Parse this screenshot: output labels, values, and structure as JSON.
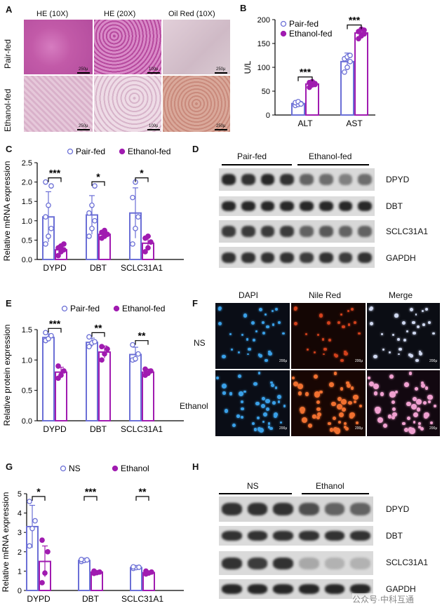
{
  "panels": {
    "A": {
      "letter": "A",
      "col_labels": [
        "HE (10X)",
        "HE (20X)",
        "Oil Red (10X)"
      ],
      "row_labels": [
        "Pair-fed",
        "Ethanol-fed"
      ],
      "scale_labels": [
        "250μ",
        "100μ",
        "250μ",
        "250μ",
        "100μ",
        "250μ"
      ]
    },
    "B": {
      "letter": "B"
    },
    "C": {
      "letter": "C"
    },
    "D": {
      "letter": "D",
      "groups": [
        "Pair-fed",
        "Ethanol-fed"
      ],
      "bands": [
        "DPYD",
        "DBT",
        "SCLC31A1",
        "GAPDH"
      ]
    },
    "E": {
      "letter": "E"
    },
    "F": {
      "letter": "F",
      "col_labels": [
        "DAPI",
        "Nile Red",
        "Merge"
      ],
      "row_labels": [
        "NS",
        "Ethanol"
      ],
      "scale_labels": [
        "200μ",
        "200μ",
        "200μ",
        "200μ",
        "200μ",
        "200μ"
      ]
    },
    "G": {
      "letter": "G"
    },
    "H": {
      "letter": "H",
      "groups": [
        "NS",
        "Ethanol"
      ],
      "bands": [
        "DPYD",
        "DBT",
        "SCLC31A1",
        "GAPDH"
      ]
    }
  },
  "watermark": "公众号·中科互通",
  "colors": {
    "control": "#6b6fd6",
    "treated": "#a01bb0"
  },
  "chart_data": [
    {
      "panel": "B",
      "type": "bar",
      "categories": [
        "ALT",
        "AST"
      ],
      "series": [
        {
          "name": "Pair-fed",
          "values": [
            24,
            112
          ],
          "sd": [
            5,
            18
          ],
          "points": [
            [
              20,
              22,
              24,
              26,
              28,
              23
            ],
            [
              90,
              100,
              112,
              118,
              122,
              125
            ]
          ]
        },
        {
          "name": "Ethanol-fed",
          "values": [
            65,
            172
          ],
          "sd": [
            6,
            8
          ],
          "points": [
            [
              58,
              63,
              66,
              68,
              70,
              64
            ],
            [
              160,
              166,
              170,
              175,
              180,
              178
            ]
          ]
        }
      ],
      "ylabel": "U/L",
      "ylim": [
        0,
        200
      ],
      "yticks": [
        0,
        50,
        100,
        150,
        200
      ],
      "significance": [
        "***",
        "***"
      ]
    },
    {
      "panel": "C",
      "type": "bar",
      "categories": [
        "DYPD",
        "DBT",
        "SCLC31A1"
      ],
      "series": [
        {
          "name": "Pair-fed",
          "values": [
            1.1,
            1.15,
            1.2
          ],
          "sd": [
            0.65,
            0.5,
            0.65
          ],
          "points": [
            [
              0.4,
              0.6,
              0.8,
              1.1,
              1.4,
              1.9,
              2.0
            ],
            [
              0.6,
              0.8,
              1.0,
              1.2,
              1.4,
              1.9
            ],
            [
              0.4,
              0.8,
              1.1,
              1.6,
              2.0
            ]
          ]
        },
        {
          "name": "Ethanol-fed",
          "values": [
            0.25,
            0.65,
            0.42
          ],
          "sd": [
            0.12,
            0.08,
            0.18
          ],
          "points": [
            [
              0.1,
              0.2,
              0.25,
              0.3,
              0.35,
              0.4
            ],
            [
              0.55,
              0.6,
              0.65,
              0.7,
              0.75
            ],
            [
              0.2,
              0.3,
              0.45,
              0.55,
              0.6
            ]
          ]
        }
      ],
      "ylabel": "Relative mRNA expression",
      "ylim": [
        0,
        2.5
      ],
      "yticks": [
        0.0,
        0.5,
        1.0,
        1.5,
        2.0,
        2.5
      ],
      "significance": [
        "***",
        "*",
        "*"
      ]
    },
    {
      "panel": "E",
      "type": "bar",
      "categories": [
        "DYPD",
        "DBT",
        "SCLC31A1"
      ],
      "series": [
        {
          "name": "Pair-fed",
          "values": [
            1.37,
            1.29,
            1.09
          ],
          "sd": [
            0.06,
            0.07,
            0.12
          ],
          "points": [
            [
              1.32,
              1.35,
              1.4,
              1.45
            ],
            [
              1.22,
              1.28,
              1.3,
              1.38
            ],
            [
              1.0,
              1.02,
              1.1,
              1.25
            ]
          ]
        },
        {
          "name": "Ethanol-fed",
          "values": [
            0.8,
            1.13,
            0.8
          ],
          "sd": [
            0.08,
            0.1,
            0.05
          ],
          "points": [
            [
              0.7,
              0.75,
              0.82,
              0.9
            ],
            [
              1.0,
              1.1,
              1.18,
              1.22
            ],
            [
              0.75,
              0.78,
              0.82,
              0.85
            ]
          ]
        }
      ],
      "ylabel": "Relative protein expression",
      "ylim": [
        0,
        1.5
      ],
      "yticks": [
        0.0,
        0.5,
        1.0,
        1.5
      ],
      "significance": [
        "***",
        "**",
        "**"
      ]
    },
    {
      "panel": "G",
      "type": "bar",
      "categories": [
        "DYPD",
        "DBT",
        "SCLC31A1"
      ],
      "series": [
        {
          "name": "NS",
          "values": [
            3.3,
            1.55,
            1.18
          ],
          "sd": [
            1.1,
            0.05,
            0.04
          ],
          "points": [
            [
              2.3,
              3.2,
              3.6,
              4.6
            ],
            [
              1.5,
              1.55,
              1.58,
              1.6
            ],
            [
              1.14,
              1.18,
              1.2,
              1.22
            ]
          ]
        },
        {
          "name": "Ethanol",
          "values": [
            1.5,
            0.95,
            0.92
          ],
          "sd": [
            0.8,
            0.05,
            0.05
          ],
          "points": [
            [
              0.4,
              0.9,
              2.0,
              2.6
            ],
            [
              0.88,
              0.92,
              0.95,
              1.0
            ],
            [
              0.85,
              0.9,
              0.95,
              1.0
            ]
          ]
        }
      ],
      "ylabel": "Relative mRNA expression",
      "ylim": [
        0,
        5
      ],
      "yticks": [
        0,
        1,
        2,
        3,
        4,
        5
      ],
      "significance": [
        "*",
        "***",
        "**"
      ]
    }
  ]
}
